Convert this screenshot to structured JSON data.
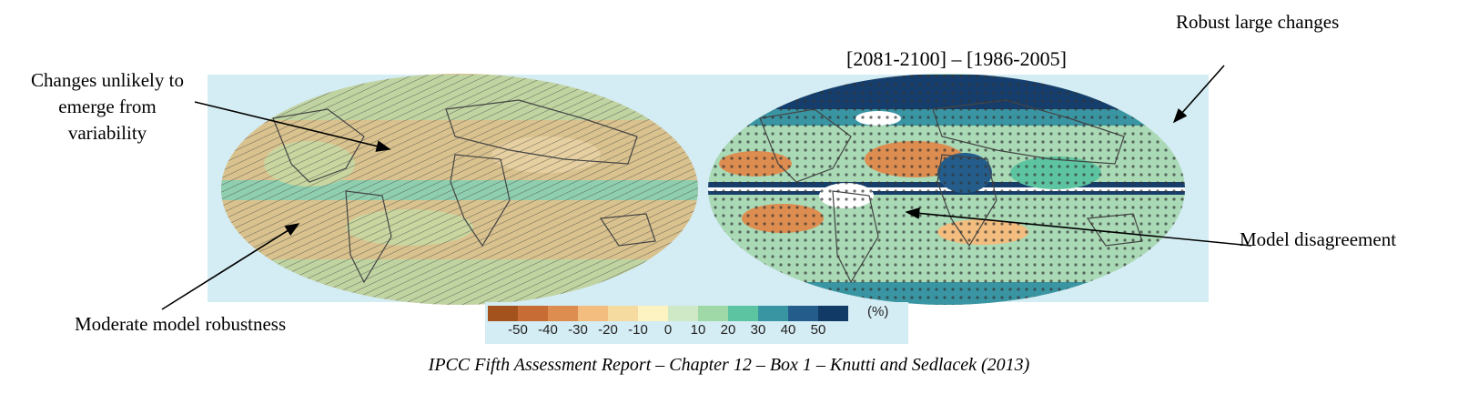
{
  "period_title": "[2081-2100] – [1986-2005]",
  "annotations": {
    "unlikely_changes": [
      "Changes unlikely to",
      "emerge from",
      "variability"
    ],
    "moderate_robustness": "Moderate model robustness",
    "robust_large": "Robust large changes",
    "model_disagreement": "Model disagreement"
  },
  "colorbar": {
    "colors": [
      "#a4521d",
      "#c86c35",
      "#de8d50",
      "#f2bd7e",
      "#f6dba0",
      "#fdf3c2",
      "#cfe9c6",
      "#9fd9a8",
      "#5cc4a0",
      "#3a95a3",
      "#245d8b",
      "#123a66"
    ],
    "tick_labels": [
      "-50",
      "-40",
      "-30",
      "-20",
      "-10",
      "0",
      "10",
      "20",
      "30",
      "40",
      "50"
    ],
    "unit": "(%)"
  },
  "caption": "IPCC Fifth Assessment Report – Chapter 12 – Box 1 – Knutti and Sedlacek (2013)",
  "maps": {
    "left": {
      "base_color": "#d9c28e",
      "band_color": "#8fcfb0",
      "hatching": true
    },
    "right": {
      "base_color": "#a9d9b5",
      "stippling": true
    }
  }
}
